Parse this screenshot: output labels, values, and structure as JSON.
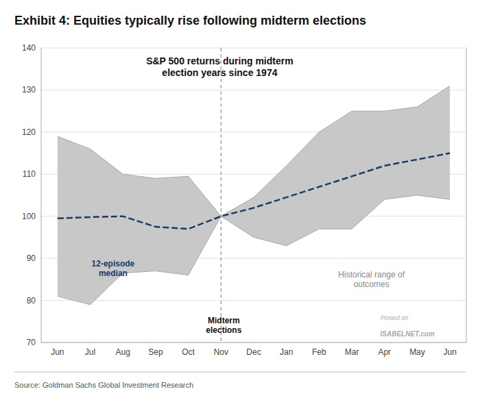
{
  "chart_data": {
    "type": "line",
    "title": "Exhibit 4: Equities typically rise following midterm elections",
    "subtitle": "S&P 500 returns during midterm\nelection years since 1974",
    "source": "Source: Goldman Sachs Global Investment Research",
    "annotations": [
      "Posted on",
      "ISABELNET.com"
    ],
    "categories": [
      "Jun",
      "Jul",
      "Aug",
      "Sep",
      "Oct",
      "Nov",
      "Dec",
      "Jan",
      "Feb",
      "Mar",
      "Apr",
      "May",
      "Jun"
    ],
    "series": [
      {
        "name": "12-episode\nmedian",
        "type": "line",
        "line_style": "dashed",
        "color": "#1a3a6b",
        "values": [
          99.5,
          99.8,
          100.0,
          97.5,
          97.0,
          100.0,
          102.0,
          104.5,
          107.0,
          109.5,
          112.0,
          113.5,
          115.0
        ]
      },
      {
        "name": "Historical range of\noutcomes",
        "type": "band",
        "color": "#c8c8c8",
        "upper": [
          119.0,
          116.0,
          110.0,
          109.0,
          109.5,
          100.0,
          104.5,
          112.0,
          120.0,
          125.0,
          125.0,
          126.0,
          131.0
        ],
        "lower": [
          81.0,
          79.0,
          86.5,
          87.0,
          86.0,
          100.0,
          95.0,
          93.0,
          97.0,
          97.0,
          104.0,
          105.0,
          104.0
        ]
      }
    ],
    "markers": [
      {
        "x": 5,
        "label": "Midterm\nelections"
      }
    ],
    "ylim": [
      70,
      140
    ],
    "yticks": [
      70,
      80,
      90,
      100,
      110,
      120,
      130,
      140
    ],
    "grid": true
  }
}
